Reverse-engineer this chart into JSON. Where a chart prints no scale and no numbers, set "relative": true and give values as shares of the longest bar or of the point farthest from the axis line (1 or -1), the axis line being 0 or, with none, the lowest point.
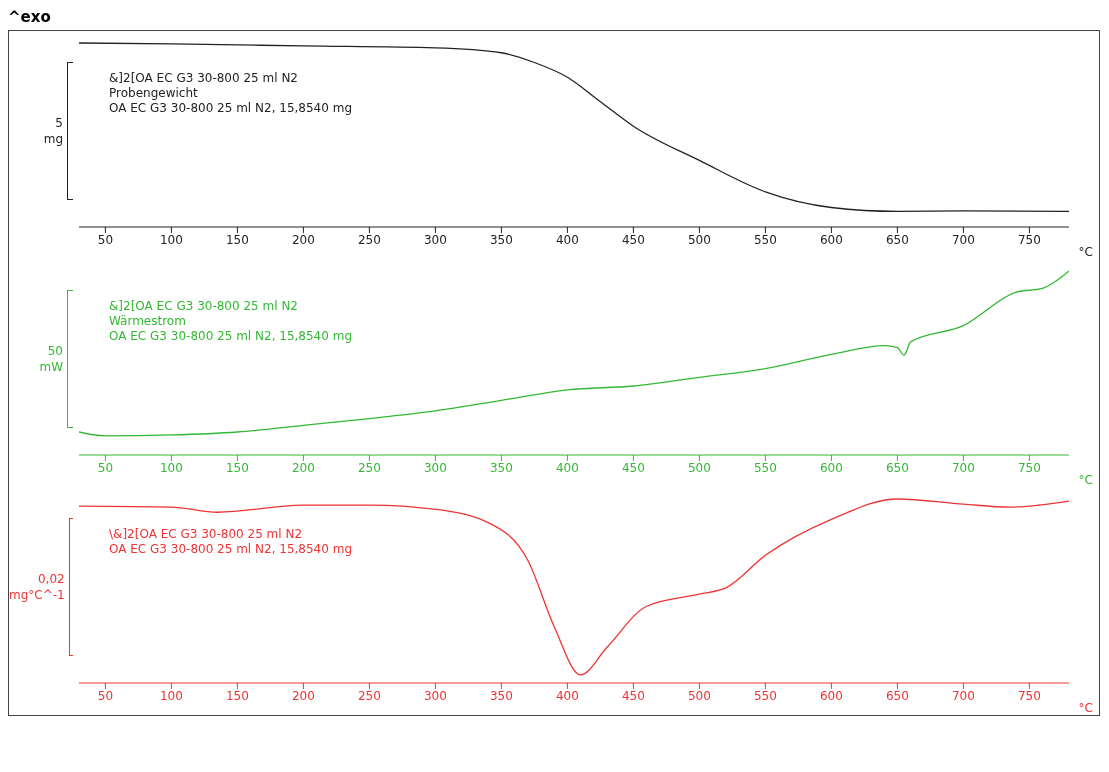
{
  "chart_data": [
    {
      "type": "line",
      "title": "^exo",
      "relative": true,
      "ylabel": "5 mg",
      "xlabel": "°C",
      "xlim": [
        30,
        780
      ],
      "xticks": [
        50,
        100,
        150,
        200,
        250,
        300,
        350,
        400,
        450,
        500,
        550,
        600,
        650,
        700,
        750
      ],
      "annotations": [
        "&]2[OA EC G3 30-800 25 ml N2",
        "Probengewicht",
        "OA EC G3 30-800 25 ml N2, 15,8540 mg"
      ],
      "x": [
        30,
        100,
        200,
        300,
        350,
        375,
        400,
        425,
        450,
        500,
        550,
        600,
        650,
        700,
        780
      ],
      "series": [
        {
          "color": "#222222",
          "values": [
            1,
            0.995,
            0.984,
            0.973,
            0.947,
            0.894,
            0.814,
            0.681,
            0.548,
            0.362,
            0.191,
            0.106,
            0.085,
            0.088,
            0.085
          ]
        }
      ]
    },
    {
      "type": "line",
      "relative": true,
      "ylabel": "50 mW",
      "xlabel": "°C",
      "xlim": [
        30,
        780
      ],
      "xticks": [
        50,
        100,
        150,
        200,
        250,
        300,
        350,
        400,
        450,
        500,
        550,
        600,
        650,
        700,
        750
      ],
      "annotations": [
        "&]2[OA EC G3 30-800 25 ml N2",
        "Wärmestrom",
        "OA EC G3 30-800 25 ml N2, 15,8540 mg"
      ],
      "x": [
        30,
        50,
        100,
        150,
        200,
        250,
        300,
        350,
        400,
        450,
        500,
        550,
        600,
        640,
        650,
        655,
        660,
        700,
        740,
        760,
        780
      ],
      "series": [
        {
          "color": "#33b833",
          "values": [
            0.125,
            0.104,
            0.109,
            0.125,
            0.161,
            0.198,
            0.24,
            0.297,
            0.354,
            0.375,
            0.422,
            0.469,
            0.547,
            0.594,
            0.583,
            0.542,
            0.615,
            0.703,
            0.885,
            0.906,
            1
          ]
        }
      ]
    },
    {
      "type": "line",
      "relative": true,
      "ylabel": "0,02 mg°C^-1",
      "xlabel": "°C",
      "xlim": [
        30,
        780
      ],
      "xticks": [
        50,
        100,
        150,
        200,
        250,
        300,
        350,
        400,
        450,
        500,
        550,
        600,
        650,
        700,
        750
      ],
      "annotations": [
        "\\&]2[OA EC G3 30-800 25 ml N2",
        "OA EC G3 30-800 25 ml N2, 15,8540 mg"
      ],
      "x": [
        30,
        100,
        135,
        200,
        250,
        300,
        340,
        370,
        390,
        410,
        430,
        460,
        500,
        520,
        550,
        600,
        650,
        700,
        735,
        780
      ],
      "series": [
        {
          "color": "#ee3333",
          "values": [
            0.961,
            0.956,
            0.928,
            0.967,
            0.967,
            0.944,
            0.872,
            0.667,
            0.306,
            0.044,
            0.194,
            0.417,
            0.483,
            0.517,
            0.694,
            0.889,
            1,
            0.972,
            0.956,
            0.989
          ]
        }
      ]
    }
  ]
}
